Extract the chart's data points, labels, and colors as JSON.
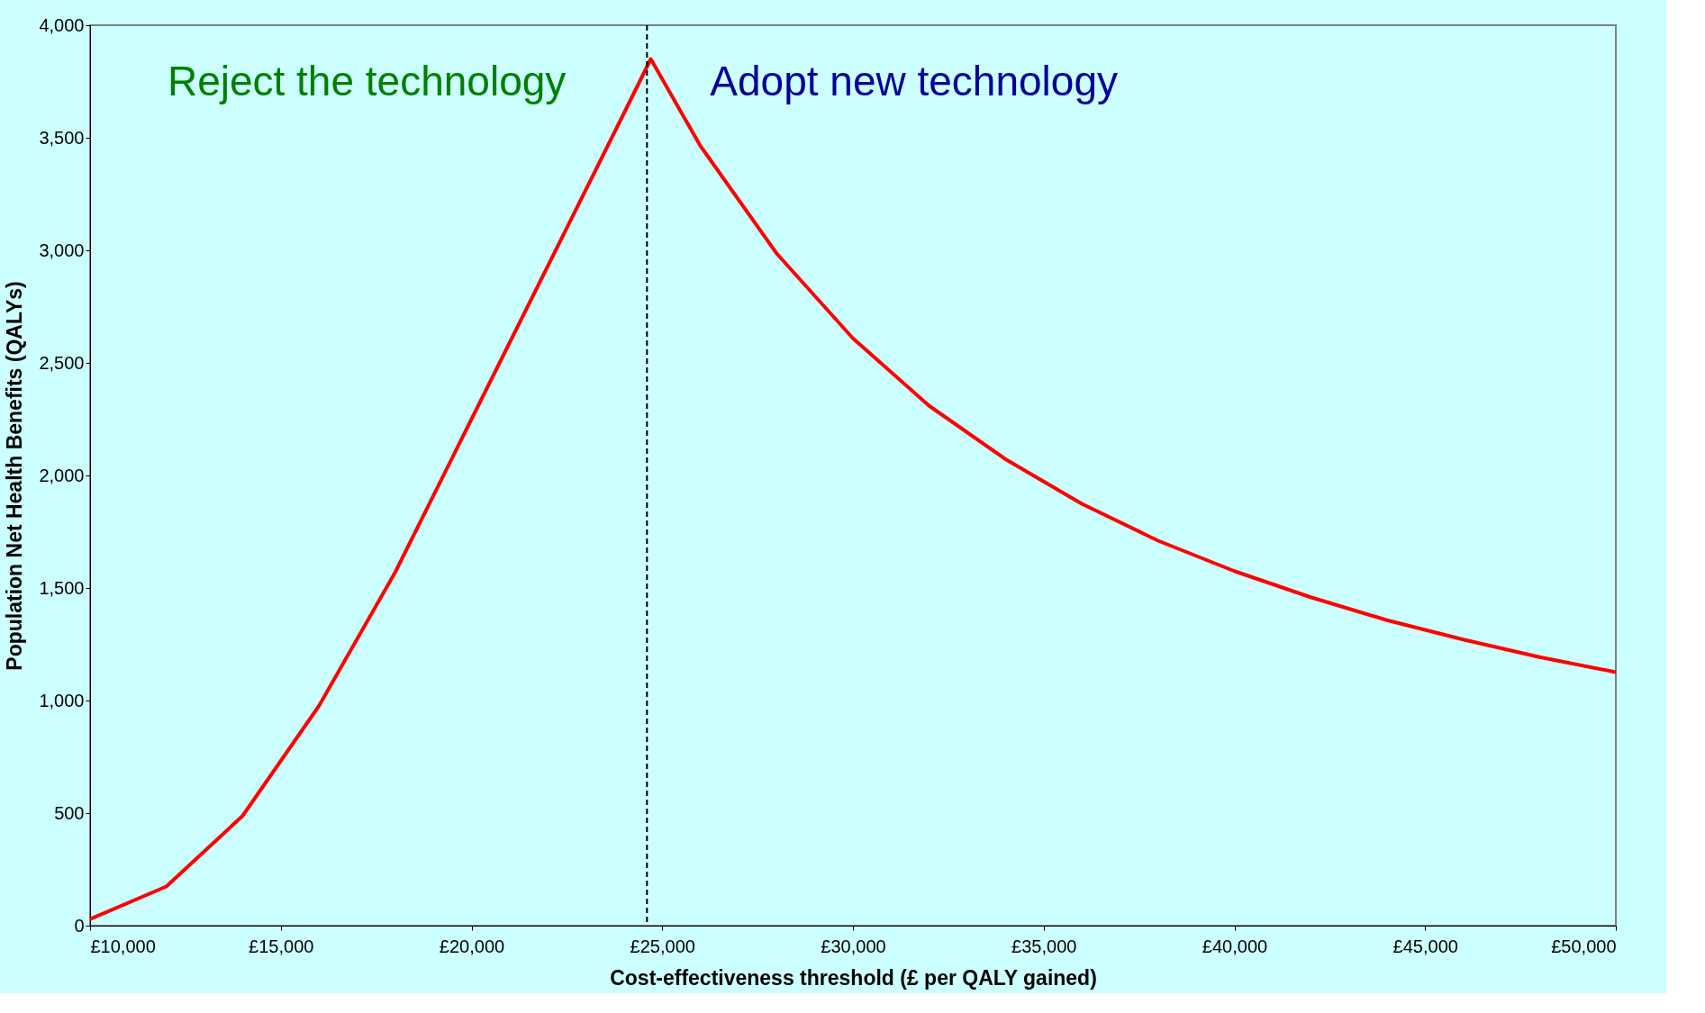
{
  "chart_data": {
    "type": "line",
    "xlabel": "Cost-effectiveness threshold (£ per QALY gained)",
    "ylabel": "Population Net Health Benefits (QALYs)",
    "x": [
      10000,
      12000,
      14000,
      16000,
      18000,
      20000,
      22000,
      24000,
      24700,
      26000,
      28000,
      30000,
      32000,
      34000,
      36000,
      38000,
      40000,
      42000,
      44000,
      46000,
      48000,
      50000
    ],
    "series": [
      {
        "color": "#ff0000",
        "values": [
          29,
          174,
          488,
          976,
          1570,
          2250,
          2930,
          3610,
          3850,
          3464,
          2986,
          2609,
          2309,
          2072,
          1874,
          1710,
          1575,
          1459,
          1357,
          1271,
          1193,
          1126
        ]
      }
    ],
    "xlim": [
      10000,
      50000
    ],
    "xticks": [
      {
        "value": 10000,
        "label": "£10,000"
      },
      {
        "value": 15000,
        "label": "£15,000"
      },
      {
        "value": 20000,
        "label": "£20,000"
      },
      {
        "value": 25000,
        "label": "£25,000"
      },
      {
        "value": 30000,
        "label": "£30,000"
      },
      {
        "value": 35000,
        "label": "£35,000"
      },
      {
        "value": 40000,
        "label": "£40,000"
      },
      {
        "value": 45000,
        "label": "£45,000"
      },
      {
        "value": 50000,
        "label": "£50,000"
      }
    ],
    "ylim": [
      0,
      4000
    ],
    "yticks": [
      {
        "value": 0,
        "label": "0"
      },
      {
        "value": 500,
        "label": "500"
      },
      {
        "value": 1000,
        "label": "1,000"
      },
      {
        "value": 1500,
        "label": "1,500"
      },
      {
        "value": 2000,
        "label": "2,000"
      },
      {
        "value": 2500,
        "label": "2,500"
      },
      {
        "value": 3000,
        "label": "3,000"
      },
      {
        "value": 3500,
        "label": "3,500"
      },
      {
        "value": 4000,
        "label": "4,000"
      }
    ],
    "ref_lines": [
      {
        "axis": "x",
        "value": 24600,
        "color": "#000000",
        "line_style": "dashed"
      }
    ],
    "annotations": [
      "Reject the technology",
      "Adopt new technology"
    ],
    "grid": false,
    "marker": "none",
    "line_style": "solid"
  }
}
